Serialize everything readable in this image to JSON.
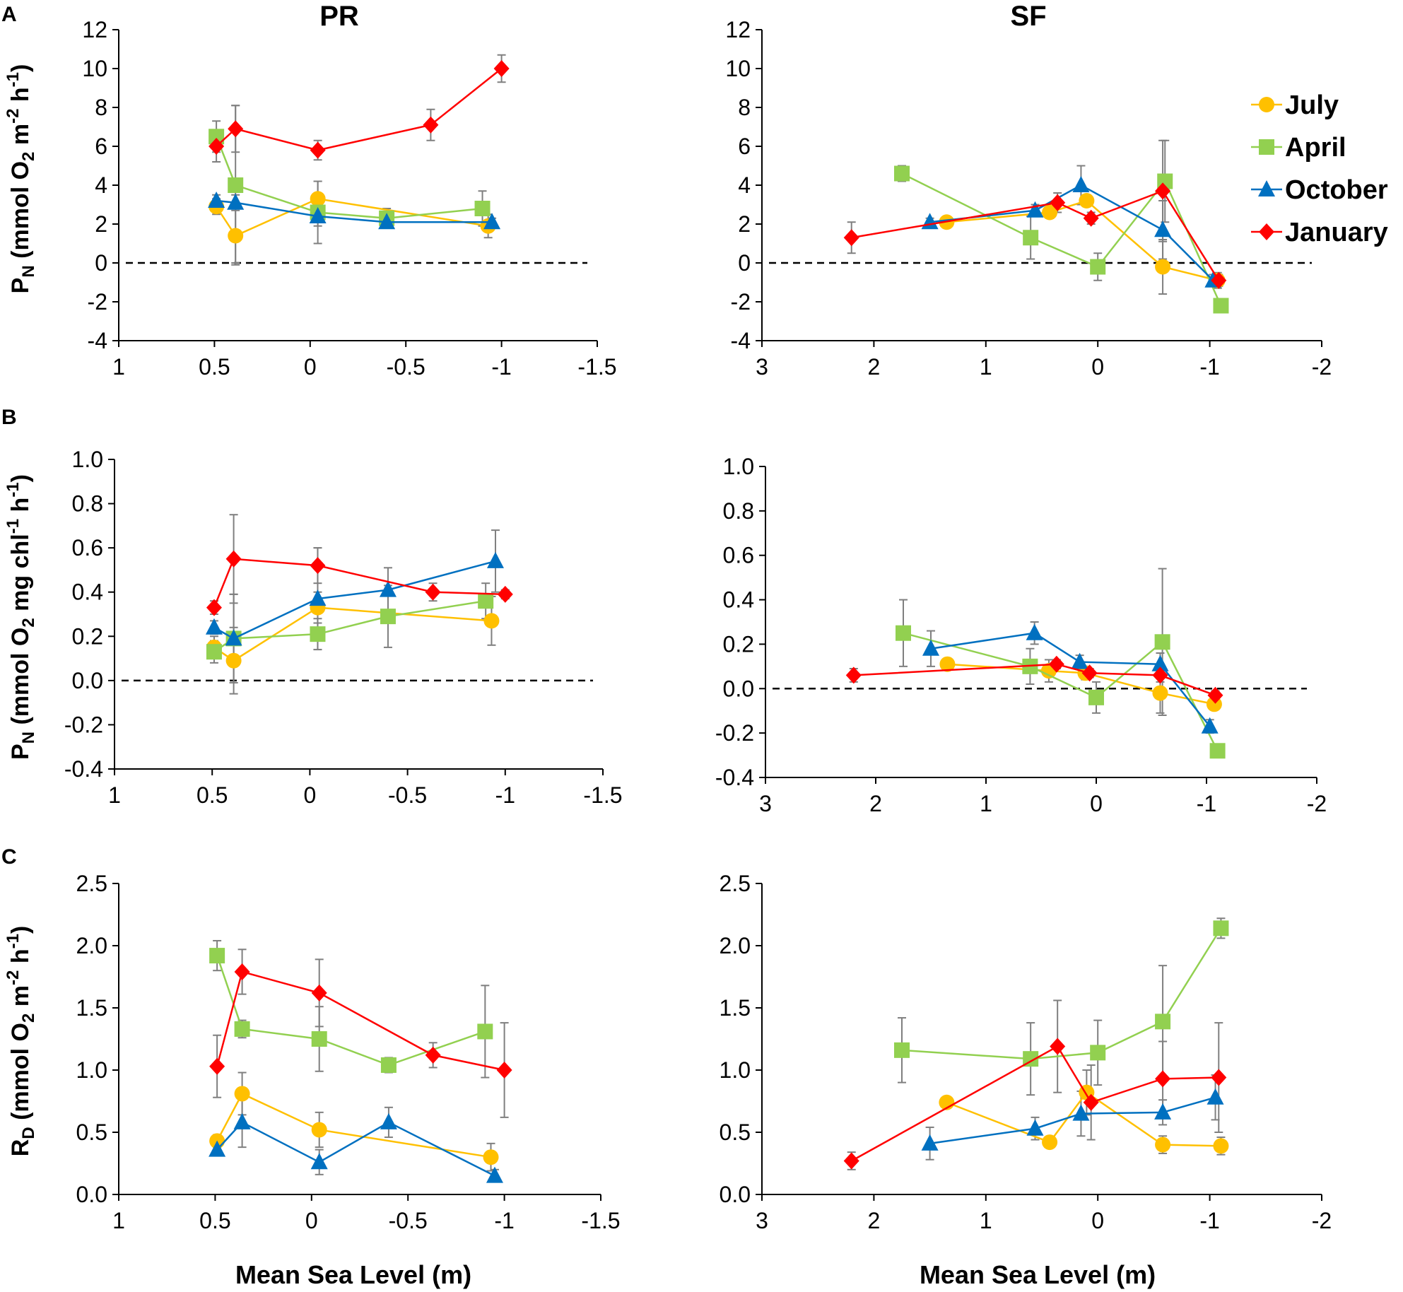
{
  "figure": {
    "panel_labels": [
      "A",
      "B",
      "C"
    ],
    "column_titles": [
      "PR",
      "SF"
    ],
    "xlabel": "Mean Sea Level (m)",
    "ylabels": {
      "A": {
        "base": "P",
        "sub": "N",
        "text": " (mmol O",
        "sub2": "2",
        "text2": " m",
        "sup": "-2",
        "text3": " h",
        "sup2": "-1",
        "text4": ")"
      },
      "B": {
        "base": "P",
        "sub": "N",
        "text": " (mmol O",
        "sub2": "2",
        "text2": " mg chl",
        "sup": "-1",
        "text3": " h",
        "sup2": "-1",
        "text4": ")"
      },
      "C": {
        "base": "R",
        "sub": "D",
        "text": " (mmol O",
        "sub2": "2",
        "text2": " m",
        "sup": "-2",
        "text3": " h",
        "sup2": "-1",
        "text4": ")"
      }
    }
  },
  "colors": {
    "July": "#FFC000",
    "April": "#92D050",
    "October": "#0070C0",
    "January": "#FF0000",
    "error": "#7f7f7f"
  },
  "legend": [
    {
      "name": "July",
      "marker": "circle"
    },
    {
      "name": "April",
      "marker": "square"
    },
    {
      "name": "October",
      "marker": "triangle"
    },
    {
      "name": "January",
      "marker": "diamond"
    }
  ],
  "chart_data": [
    {
      "id": "A-PR",
      "type": "line",
      "title": "PR",
      "panel": "A",
      "xlim": [
        1,
        -1.5
      ],
      "xticks": [
        1,
        0.5,
        0,
        -0.5,
        -1,
        -1.5
      ],
      "xtick_labels": [
        "1",
        "0.5",
        "0",
        "-0.5",
        "-1",
        "-1.5"
      ],
      "ylim": [
        -4,
        12
      ],
      "yticks": [
        -4,
        -2,
        0,
        2,
        4,
        6,
        8,
        10,
        12
      ],
      "ytick_labels": [
        "-4",
        "-2",
        "0",
        "2",
        "4",
        "6",
        "8",
        "10",
        "12"
      ],
      "zero_line": true,
      "series": [
        {
          "name": "July",
          "x": [
            0.49,
            0.39,
            -0.04,
            -0.93
          ],
          "y": [
            2.9,
            1.4,
            3.3,
            1.9
          ],
          "err": [
            0.4,
            1.4,
            0.9,
            0.6
          ]
        },
        {
          "name": "April",
          "x": [
            0.49,
            0.39,
            -0.04,
            -0.4,
            -0.9
          ],
          "y": [
            6.5,
            4.0,
            2.6,
            2.3,
            2.8
          ],
          "err": [
            0.8,
            4.1,
            1.6,
            0.5,
            0.9
          ]
        },
        {
          "name": "October",
          "x": [
            0.49,
            0.39,
            -0.04,
            -0.4,
            -0.95
          ],
          "y": [
            3.2,
            3.1,
            2.4,
            2.1,
            2.1
          ],
          "err": [
            0.3,
            0.4,
            0.5,
            0.2,
            0.2
          ]
        },
        {
          "name": "January",
          "x": [
            0.49,
            0.39,
            -0.04,
            -0.63,
            -1.0
          ],
          "y": [
            6.0,
            6.9,
            5.8,
            7.1,
            10.0
          ],
          "err": [
            0.8,
            1.2,
            0.5,
            0.8,
            0.7
          ]
        }
      ]
    },
    {
      "id": "A-SF",
      "type": "line",
      "title": "SF",
      "panel": "A",
      "xlim": [
        3,
        -2
      ],
      "xticks": [
        3,
        2,
        1,
        0,
        -1,
        -2
      ],
      "xtick_labels": [
        "3",
        "2",
        "1",
        "0",
        "-1",
        "-2"
      ],
      "ylim": [
        -4,
        12
      ],
      "yticks": [
        -4,
        -2,
        0,
        2,
        4,
        6,
        8,
        10,
        12
      ],
      "ytick_labels": [
        "-4",
        "-2",
        "0",
        "2",
        "4",
        "6",
        "8",
        "10",
        "12"
      ],
      "zero_line": true,
      "series": [
        {
          "name": "July",
          "x": [
            1.35,
            0.43,
            0.1,
            -0.58,
            -1.07
          ],
          "y": [
            2.1,
            2.6,
            3.2,
            -0.2,
            -0.9
          ],
          "err": [
            0.3,
            0.3,
            0.3,
            1.4,
            0.4
          ]
        },
        {
          "name": "April",
          "x": [
            1.75,
            0.6,
            0.0,
            -0.6,
            -1.1
          ],
          "y": [
            4.6,
            1.3,
            -0.2,
            4.2,
            -2.2
          ],
          "err": [
            0.4,
            1.1,
            0.7,
            2.1,
            0.2
          ]
        },
        {
          "name": "October",
          "x": [
            1.5,
            0.56,
            0.15,
            -0.58,
            -1.03
          ],
          "y": [
            2.1,
            2.7,
            4.0,
            1.7,
            -0.9
          ],
          "err": [
            0.2,
            0.3,
            1.0,
            1.5,
            0.3
          ]
        },
        {
          "name": "January",
          "x": [
            2.2,
            0.36,
            0.06,
            -0.58,
            -1.08
          ],
          "y": [
            1.3,
            3.1,
            2.3,
            3.7,
            -0.9
          ],
          "err": [
            0.8,
            0.5,
            0.3,
            2.6,
            0.3
          ]
        }
      ]
    },
    {
      "id": "B-PR",
      "type": "line",
      "title": "",
      "panel": "B",
      "xlim": [
        1,
        -1.5
      ],
      "xticks": [
        1,
        0.5,
        0,
        -0.5,
        -1,
        -1.5
      ],
      "xtick_labels": [
        "1",
        "0.5",
        "0",
        "-0.5",
        "-1",
        "-1.5"
      ],
      "ylim": [
        -0.4,
        1.0
      ],
      "yticks": [
        -0.4,
        -0.2,
        0.0,
        0.2,
        0.4,
        0.6,
        0.8,
        1.0
      ],
      "ytick_labels": [
        "-0.4",
        "-0.2",
        "0.0",
        "0.2",
        "0.4",
        "0.6",
        "0.8",
        "1.0"
      ],
      "zero_line": true,
      "series": [
        {
          "name": "July",
          "x": [
            0.49,
            0.39,
            -0.04,
            -0.93
          ],
          "y": [
            0.15,
            0.09,
            0.33,
            0.27
          ],
          "err": [
            0.05,
            0.15,
            0.07,
            0.11
          ]
        },
        {
          "name": "April",
          "x": [
            0.49,
            0.39,
            -0.04,
            -0.4,
            -0.9
          ],
          "y": [
            0.13,
            0.19,
            0.21,
            0.29,
            0.36
          ],
          "err": [
            0.05,
            0.2,
            0.07,
            0.14,
            0.08
          ]
        },
        {
          "name": "October",
          "x": [
            0.49,
            0.39,
            -0.04,
            -0.4,
            -0.95
          ],
          "y": [
            0.24,
            0.19,
            0.37,
            0.41,
            0.54
          ],
          "err": [
            0.03,
            0.2,
            0.23,
            0.1,
            0.14
          ]
        },
        {
          "name": "January",
          "x": [
            0.49,
            0.39,
            -0.04,
            -0.63,
            -1.0
          ],
          "y": [
            0.33,
            0.55,
            0.52,
            0.4,
            0.39
          ],
          "err": [
            0.03,
            0.2,
            0.08,
            0.04,
            0.02
          ]
        }
      ]
    },
    {
      "id": "B-SF",
      "type": "line",
      "title": "",
      "panel": "B",
      "xlim": [
        3,
        -2
      ],
      "xticks": [
        3,
        2,
        1,
        0,
        -1,
        -2
      ],
      "xtick_labels": [
        "3",
        "2",
        "1",
        "0",
        "-1",
        "-2"
      ],
      "ylim": [
        -0.4,
        1.0
      ],
      "yticks": [
        -0.4,
        -0.2,
        0.0,
        0.2,
        0.4,
        0.6,
        0.8,
        1.0
      ],
      "ytick_labels": [
        "-0.4",
        "-0.2",
        "0.0",
        "0.2",
        "0.4",
        "0.6",
        "0.8",
        "1.0"
      ],
      "zero_line": true,
      "series": [
        {
          "name": "July",
          "x": [
            1.35,
            0.43,
            0.1,
            -0.58,
            -1.07
          ],
          "y": [
            0.11,
            0.08,
            0.07,
            -0.02,
            -0.07
          ],
          "err": [
            0.02,
            0.05,
            0.03,
            0.09,
            0.02
          ]
        },
        {
          "name": "April",
          "x": [
            1.75,
            0.6,
            0.0,
            -0.6,
            -1.1
          ],
          "y": [
            0.25,
            0.1,
            -0.04,
            0.21,
            -0.28
          ],
          "err": [
            0.15,
            0.08,
            0.07,
            0.33,
            0.02
          ]
        },
        {
          "name": "October",
          "x": [
            1.5,
            0.56,
            0.15,
            -0.58,
            -1.03
          ],
          "y": [
            0.18,
            0.25,
            0.12,
            0.11,
            -0.17
          ],
          "err": [
            0.08,
            0.05,
            0.03,
            0.05,
            0.03
          ]
        },
        {
          "name": "January",
          "x": [
            2.2,
            0.36,
            0.06,
            -0.58,
            -1.08
          ],
          "y": [
            0.06,
            0.11,
            0.07,
            0.06,
            -0.03
          ],
          "err": [
            0.03,
            0.02,
            0.02,
            0.03,
            0.02
          ]
        }
      ]
    },
    {
      "id": "C-PR",
      "type": "line",
      "title": "",
      "panel": "C",
      "xlim": [
        1,
        -1.5
      ],
      "xticks": [
        1,
        0.5,
        0,
        -0.5,
        -1,
        -1.5
      ],
      "xtick_labels": [
        "1",
        "0.5",
        "0",
        "-0.5",
        "-1",
        "-1.5"
      ],
      "ylim": [
        0,
        2.5
      ],
      "yticks": [
        0,
        0.5,
        1.0,
        1.5,
        2.0,
        2.5
      ],
      "ytick_labels": [
        "0.0",
        "0.5",
        "1.0",
        "1.5",
        "2.0",
        "2.5"
      ],
      "zero_line": false,
      "series": [
        {
          "name": "July",
          "x": [
            0.49,
            0.36,
            -0.04,
            -0.93
          ],
          "y": [
            0.43,
            0.81,
            0.52,
            0.3
          ],
          "err": [
            0.05,
            0.17,
            0.14,
            0.11
          ]
        },
        {
          "name": "April",
          "x": [
            0.49,
            0.36,
            -0.04,
            -0.4,
            -0.9
          ],
          "y": [
            1.92,
            1.33,
            1.25,
            1.04,
            1.31
          ],
          "err": [
            0.12,
            0.07,
            0.26,
            0.06,
            0.37
          ]
        },
        {
          "name": "October",
          "x": [
            0.49,
            0.36,
            -0.04,
            -0.4,
            -0.95
          ],
          "y": [
            0.36,
            0.58,
            0.26,
            0.58,
            0.15
          ],
          "err": [
            0.05,
            0.2,
            0.1,
            0.12,
            0.05
          ]
        },
        {
          "name": "January",
          "x": [
            0.49,
            0.36,
            -0.04,
            -0.63,
            -1.0
          ],
          "y": [
            1.03,
            1.79,
            1.62,
            1.12,
            1.0
          ],
          "err": [
            0.25,
            0.18,
            0.27,
            0.1,
            0.38
          ]
        }
      ]
    },
    {
      "id": "C-SF",
      "type": "line",
      "title": "",
      "panel": "C",
      "xlim": [
        3,
        -2
      ],
      "xticks": [
        3,
        2,
        1,
        0,
        -1,
        -2
      ],
      "xtick_labels": [
        "3",
        "2",
        "1",
        "0",
        "-1",
        "-2"
      ],
      "ylim": [
        0,
        2.5
      ],
      "yticks": [
        0,
        0.5,
        1.0,
        1.5,
        2.0,
        2.5
      ],
      "ytick_labels": [
        "0.0",
        "0.5",
        "1.0",
        "1.5",
        "2.0",
        "2.5"
      ],
      "zero_line": false,
      "series": [
        {
          "name": "July",
          "x": [
            1.35,
            0.43,
            0.1,
            -0.58,
            -1.1
          ],
          "y": [
            0.74,
            0.42,
            0.82,
            0.4,
            0.39
          ],
          "err": [
            0.03,
            0.03,
            0.18,
            0.07,
            0.07
          ]
        },
        {
          "name": "April",
          "x": [
            1.75,
            0.6,
            0.0,
            -0.58,
            -1.1
          ],
          "y": [
            1.16,
            1.09,
            1.14,
            1.39,
            2.14
          ],
          "err": [
            0.26,
            0.29,
            0.26,
            0.45,
            0.08
          ]
        },
        {
          "name": "October",
          "x": [
            1.5,
            0.56,
            0.15,
            -0.58,
            -1.05
          ],
          "y": [
            0.41,
            0.53,
            0.65,
            0.66,
            0.78
          ],
          "err": [
            0.13,
            0.09,
            0.18,
            0.1,
            0.18
          ]
        },
        {
          "name": "January",
          "x": [
            2.2,
            0.36,
            0.06,
            -0.58,
            -1.08
          ],
          "y": [
            0.27,
            1.19,
            0.74,
            0.93,
            0.94
          ],
          "err": [
            0.07,
            0.37,
            0.3,
            0.3,
            0.44
          ]
        }
      ]
    }
  ]
}
